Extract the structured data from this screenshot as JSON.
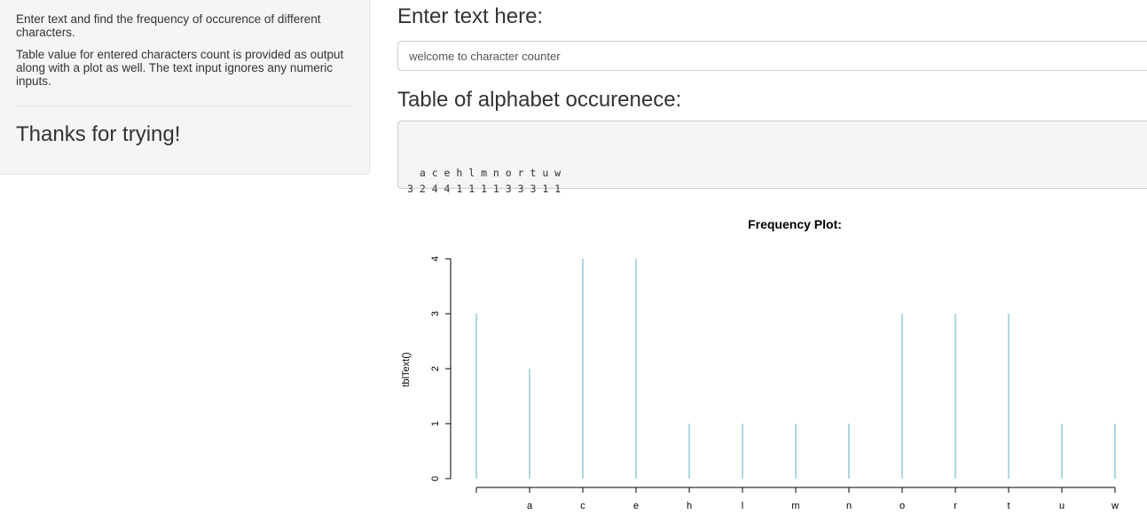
{
  "sidebar": {
    "paragraph1": "Enter text and find the frequency of occurence of different characters.",
    "paragraph2": "Table value for entered characters count is provided as output along with a plot as well. The text input ignores any numeric inputs.",
    "thanks": "Thanks for trying!"
  },
  "main": {
    "input_title": "Enter text here:",
    "input_value": "welcome to character counter",
    "table_title": "Table of alphabet occurenece:",
    "table_output": "\n  a c e h l m n o r t u w \n3 2 4 4 1 1 1 1 3 3 3 1 1 "
  },
  "chart_data": {
    "type": "bar",
    "title": "Frequency Plot:",
    "xlabel": "",
    "ylabel": "tblText()",
    "ylim": [
      0,
      4
    ],
    "yticks": [
      0,
      1,
      2,
      3,
      4
    ],
    "categories": [
      "",
      "a",
      "c",
      "e",
      "h",
      "l",
      "m",
      "n",
      "o",
      "r",
      "t",
      "u",
      "w"
    ],
    "values": [
      3,
      2,
      4,
      4,
      1,
      1,
      1,
      1,
      3,
      3,
      3,
      1,
      1
    ],
    "bar_color": "#add8e6"
  }
}
